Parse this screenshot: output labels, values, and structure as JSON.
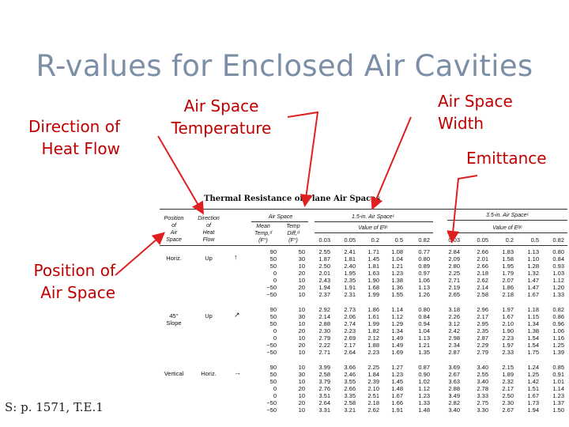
{
  "slide": {
    "title": "R-values for Enclosed Air Cavities",
    "source": "S: p. 1571, T.E.1"
  },
  "callouts": {
    "direction": [
      "Direction of",
      "Heat Flow"
    ],
    "temperature": [
      "Air Space",
      "Temperature"
    ],
    "width": [
      "Air Space",
      "Width"
    ],
    "emittance": [
      "Emittance"
    ],
    "position": [
      "Position of",
      "Air Space"
    ]
  },
  "colors": {
    "accent": "#c00000",
    "title": "#7c8fa6"
  },
  "table": {
    "title": "Thermal Resistance of Plane Air Spaces",
    "headers": {
      "position": [
        "Position",
        "of",
        "Air",
        "Space"
      ],
      "direction": [
        "Direction",
        "of",
        "Heat",
        "Flow"
      ],
      "air_space": "Air Space",
      "mean_temp": [
        "Mean",
        "Temp,ᵈ",
        "(F°)"
      ],
      "temp_diff": [
        "Temp",
        "Diff,ᵈ",
        "(F°)"
      ],
      "group1": "1.5-in. Air Spaceᶜ",
      "group2": "3.5-in. Air Spaceᶜ",
      "value_of_e": "Value of Eᵇʲᶜ",
      "emittances": [
        "0.03",
        "0.05",
        "0.2",
        "0.5",
        "0.82"
      ]
    },
    "sections": [
      {
        "position": [
          "Horiz."
        ],
        "direction": "Up",
        "arrow": "up-arrow",
        "rows": [
          [
            "90",
            "50",
            "2.55",
            "2.41",
            "1.71",
            "1.08",
            "0.77",
            "2.84",
            "2.66",
            "1.83",
            "1.13",
            "0.80"
          ],
          [
            "50",
            "30",
            "1.87",
            "1.81",
            "1.45",
            "1.04",
            "0.80",
            "2.09",
            "2.01",
            "1.58",
            "1.10",
            "0.84"
          ],
          [
            "50",
            "10",
            "2.50",
            "2.40",
            "1.81",
            "1.21",
            "0.89",
            "2.80",
            "2.66",
            "1.95",
            "1.28",
            "0.93"
          ],
          [
            "0",
            "20",
            "2.01",
            "1.95",
            "1.63",
            "1.23",
            "0.97",
            "2.25",
            "2.18",
            "1.79",
            "1.32",
            "1.03"
          ],
          [
            "0",
            "10",
            "2.43",
            "2.35",
            "1.90",
            "1.38",
            "1.06",
            "2.71",
            "2.62",
            "2.07",
            "1.47",
            "1.12"
          ],
          [
            "−50",
            "20",
            "1.94",
            "1.91",
            "1.68",
            "1.36",
            "1.13",
            "2.19",
            "2.14",
            "1.86",
            "1.47",
            "1.20"
          ],
          [
            "−50",
            "10",
            "2.37",
            "2.31",
            "1.99",
            "1.55",
            "1.26",
            "2.65",
            "2.58",
            "2.18",
            "1.67",
            "1.33"
          ]
        ]
      },
      {
        "position": [
          "45°",
          "Slope"
        ],
        "direction": "Up",
        "arrow": "diagonal-up-arrow",
        "rows": [
          [
            "90",
            "10",
            "2.92",
            "2.73",
            "1.86",
            "1.14",
            "0.80",
            "3.18",
            "2.96",
            "1.97",
            "1.18",
            "0.82"
          ],
          [
            "50",
            "30",
            "2.14",
            "2.06",
            "1.61",
            "1.12",
            "0.84",
            "2.26",
            "2.17",
            "1.67",
            "1.15",
            "0.86"
          ],
          [
            "50",
            "10",
            "2.88",
            "2.74",
            "1.99",
            "1.29",
            "0.94",
            "3.12",
            "2.95",
            "2.10",
            "1.34",
            "0.96"
          ],
          [
            "0",
            "20",
            "2.30",
            "2.23",
            "1.82",
            "1.34",
            "1.04",
            "2.42",
            "2.35",
            "1.90",
            "1.38",
            "1.06"
          ],
          [
            "0",
            "10",
            "2.79",
            "2.69",
            "2.12",
            "1.49",
            "1.13",
            "2.98",
            "2.87",
            "2.23",
            "1.54",
            "1.16"
          ],
          [
            "−50",
            "20",
            "2.22",
            "2.17",
            "1.88",
            "1.49",
            "1.21",
            "2.34",
            "2.29",
            "1.97",
            "1.54",
            "1.25"
          ],
          [
            "−50",
            "10",
            "2.71",
            "2.64",
            "2.23",
            "1.69",
            "1.35",
            "2.87",
            "2.79",
            "2.33",
            "1.75",
            "1.39"
          ]
        ]
      },
      {
        "position": [
          "Vertical"
        ],
        "direction": "Horiz.",
        "arrow": "right-arrow",
        "rows": [
          [
            "90",
            "10",
            "3.99",
            "3.66",
            "2.25",
            "1.27",
            "0.87",
            "3.69",
            "3.40",
            "2.15",
            "1.24",
            "0.85"
          ],
          [
            "50",
            "30",
            "2.58",
            "2.46",
            "1.84",
            "1.23",
            "0.90",
            "2.67",
            "2.55",
            "1.89",
            "1.25",
            "0.91"
          ],
          [
            "50",
            "10",
            "3.79",
            "3.55",
            "2.39",
            "1.45",
            "1.02",
            "3.63",
            "3.40",
            "2.32",
            "1.42",
            "1.01"
          ],
          [
            "0",
            "20",
            "2.76",
            "2.66",
            "2.10",
            "1.48",
            "1.12",
            "2.88",
            "2.78",
            "2.17",
            "1.51",
            "1.14"
          ],
          [
            "0",
            "10",
            "3.51",
            "3.35",
            "2.51",
            "1.67",
            "1.23",
            "3.49",
            "3.33",
            "2.50",
            "1.67",
            "1.23"
          ],
          [
            "−50",
            "20",
            "2.64",
            "2.58",
            "2.18",
            "1.66",
            "1.33",
            "2.82",
            "2.75",
            "2.30",
            "1.73",
            "1.37"
          ],
          [
            "−50",
            "10",
            "3.31",
            "3.21",
            "2.62",
            "1.91",
            "1.48",
            "3.40",
            "3.30",
            "2.67",
            "1.94",
            "1.50"
          ]
        ]
      }
    ]
  }
}
